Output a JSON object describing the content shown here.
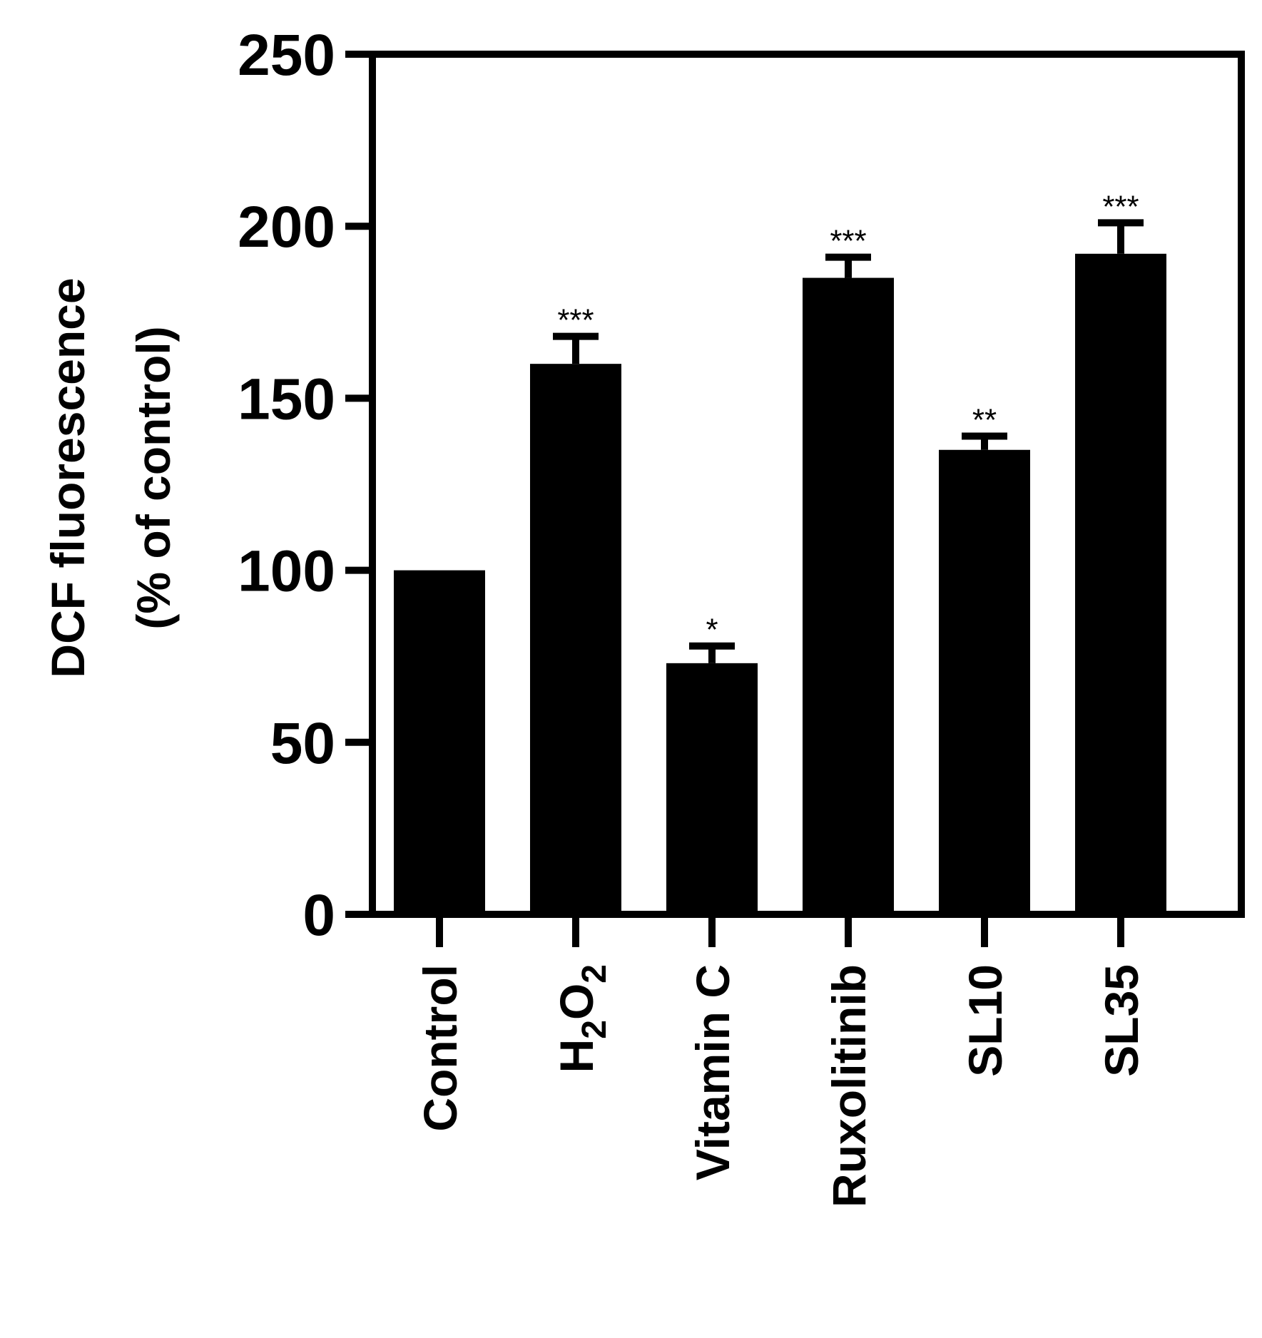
{
  "chart_data": {
    "type": "bar",
    "categories": [
      "Control",
      "H2O2",
      "Vitamin C",
      "Ruxolitinib",
      "SL10",
      "SL35"
    ],
    "category_labels": [
      {
        "text": "Control"
      },
      {
        "text": "H",
        "sub": "2",
        "text2": "O",
        "sub2": "2"
      },
      {
        "text": "Vitamin C"
      },
      {
        "text": "Ruxolitinib"
      },
      {
        "text": "SL10"
      },
      {
        "text": "SL35"
      }
    ],
    "values": [
      100,
      160,
      73,
      185,
      135,
      192
    ],
    "errors": [
      0,
      8,
      5,
      6,
      4,
      9
    ],
    "significance": [
      "",
      "***",
      "*",
      "***",
      "**",
      "***"
    ],
    "ylabel_line1": "DCF fluorescence",
    "ylabel_line2": "(% of control)",
    "xlabel": "",
    "title": "",
    "ylim": [
      0,
      250
    ],
    "yticks": [
      0,
      50,
      100,
      150,
      200,
      250
    ],
    "bar_color": "#000000",
    "grid": false,
    "legend": "none"
  }
}
